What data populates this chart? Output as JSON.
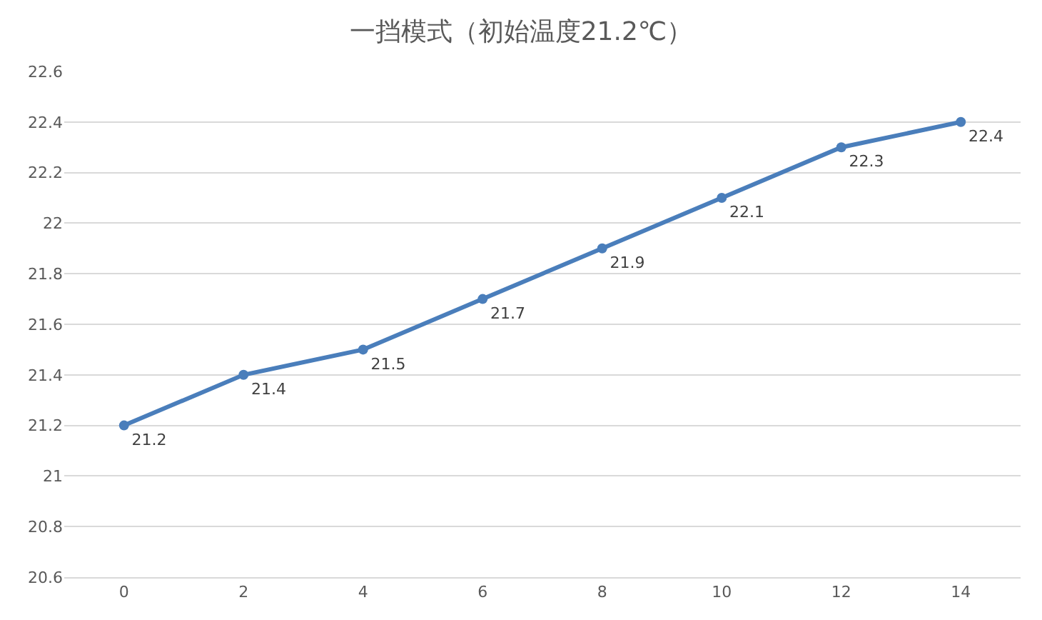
{
  "chart_data": {
    "type": "line",
    "title": "一挡模式（初始温度21.2℃）",
    "categories": [
      "0",
      "2",
      "4",
      "6",
      "8",
      "10",
      "12",
      "14"
    ],
    "series": [
      {
        "color": "#4a7ebb",
        "values": [
          21.2,
          21.4,
          21.5,
          21.7,
          21.9,
          22.1,
          22.3,
          22.4
        ]
      }
    ],
    "ylim": [
      20.6,
      22.6
    ],
    "yticks": [
      20.6,
      20.8,
      21,
      21.2,
      21.4,
      21.6,
      21.8,
      22,
      22.2,
      22.4,
      22.6
    ],
    "grid": "y",
    "marker": "circle",
    "line_style": "solid",
    "data_labels": true
  }
}
